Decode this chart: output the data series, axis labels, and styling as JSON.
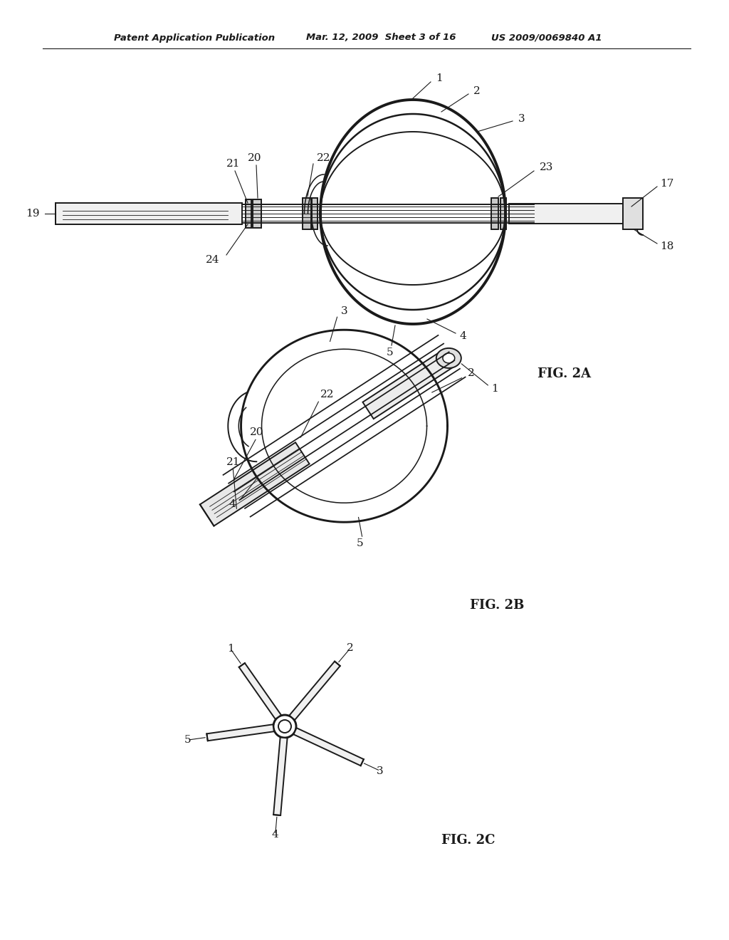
{
  "background_color": "#ffffff",
  "line_color": "#1a1a1a",
  "header_left": "Patent Application Publication",
  "header_mid": "Mar. 12, 2009  Sheet 3 of 16",
  "header_right": "US 2009/0069840 A1",
  "fig2a_label": "FIG. 2A",
  "fig2b_label": "FIG. 2B",
  "fig2c_label": "FIG. 2C",
  "lw": 1.4,
  "lw_thick": 2.8,
  "lw_thin": 0.8
}
